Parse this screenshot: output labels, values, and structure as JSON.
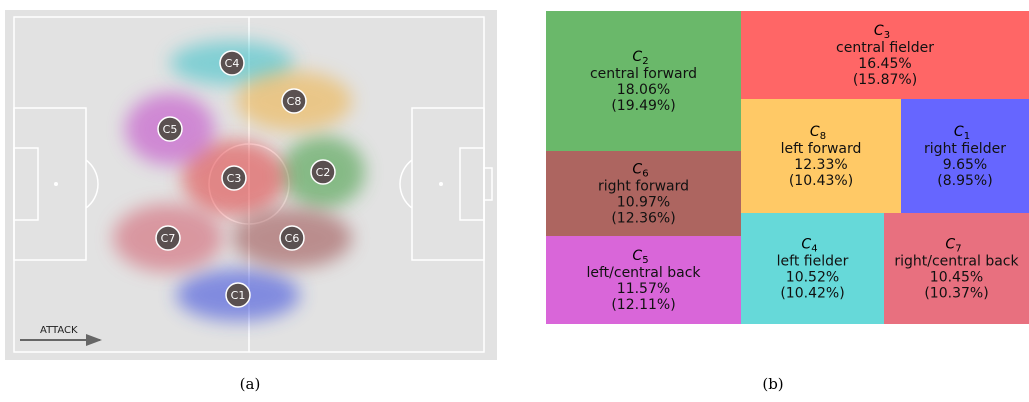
{
  "pitch": {
    "arrow_label": "ATTACK",
    "caption": "(a)",
    "clusters": [
      {
        "label": "C1",
        "color": "#3344dd"
      },
      {
        "label": "C2",
        "color": "#3a9a3a"
      },
      {
        "label": "C3",
        "color": "#e03a3a"
      },
      {
        "label": "C4",
        "color": "#33c0c8"
      },
      {
        "label": "C5",
        "color": "#c040c8"
      },
      {
        "label": "C6",
        "color": "#9a4a48"
      },
      {
        "label": "C7",
        "color": "#d25a6a"
      },
      {
        "label": "C8",
        "color": "#f0b040"
      }
    ]
  },
  "chart_data": {
    "type": "treemap",
    "caption": "(b)",
    "items": [
      {
        "symbol": "C",
        "sub": "2",
        "role": "central forward",
        "share": 18.06,
        "share_label": "18.06%",
        "alt_share": 19.49,
        "alt_share_label": "(19.49%)",
        "color": "#6ab86a"
      },
      {
        "symbol": "C",
        "sub": "3",
        "role": "central fielder",
        "share": 16.45,
        "share_label": "16.45%",
        "alt_share": 15.87,
        "alt_share_label": "(15.87%)",
        "color": "#ff6666"
      },
      {
        "symbol": "C",
        "sub": "6",
        "role": "right forward",
        "share": 10.97,
        "share_label": "10.97%",
        "alt_share": 12.36,
        "alt_share_label": "(12.36%)",
        "color": "#ad6560"
      },
      {
        "symbol": "C",
        "sub": "8",
        "role": "left forward",
        "share": 12.33,
        "share_label": "12.33%",
        "alt_share": 10.43,
        "alt_share_label": "(10.43%)",
        "color": "#ffc966"
      },
      {
        "symbol": "C",
        "sub": "1",
        "role": "right fielder",
        "share": 9.65,
        "share_label": "9.65%",
        "alt_share": 8.95,
        "alt_share_label": "(8.95%)",
        "color": "#6666ff"
      },
      {
        "symbol": "C",
        "sub": "5",
        "role": "left/central back",
        "share": 11.57,
        "share_label": "11.57%",
        "alt_share": 12.11,
        "alt_share_label": "(12.11%)",
        "color": "#d966d9"
      },
      {
        "symbol": "C",
        "sub": "4",
        "role": "left fielder",
        "share": 10.52,
        "share_label": "10.52%",
        "alt_share": 10.42,
        "alt_share_label": "(10.42%)",
        "color": "#66d9d9"
      },
      {
        "symbol": "C",
        "sub": "7",
        "role": "right/central back",
        "share": 10.45,
        "share_label": "10.45%",
        "alt_share": 10.37,
        "alt_share_label": "(10.37%)",
        "color": "#e8707f"
      }
    ]
  }
}
